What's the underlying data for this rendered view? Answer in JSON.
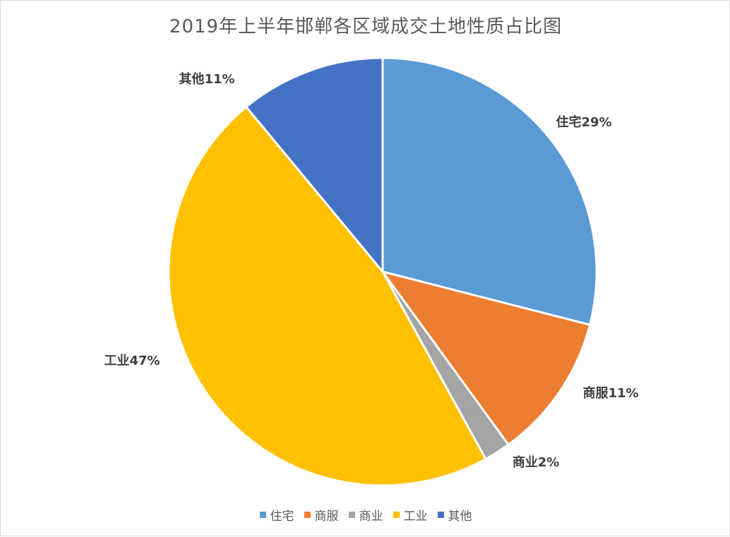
{
  "chart_data": {
    "type": "pie",
    "title": "2019年上半年邯郸各区域成交土地性质占比图",
    "slices": [
      {
        "name": "住宅",
        "value": 29,
        "label": "住宅29%",
        "color": "#5b9bd5"
      },
      {
        "name": "商服",
        "value": 11,
        "label": "商服11%",
        "color": "#ed7d31"
      },
      {
        "name": "商业",
        "value": 2,
        "label": "商业2%",
        "color": "#a5a5a5"
      },
      {
        "name": "工业",
        "value": 47,
        "label": "工业47%",
        "color": "#ffc000"
      },
      {
        "name": "其他",
        "value": 11,
        "label": "其他11%",
        "color": "#4472c4"
      }
    ],
    "legend_position": "bottom"
  }
}
